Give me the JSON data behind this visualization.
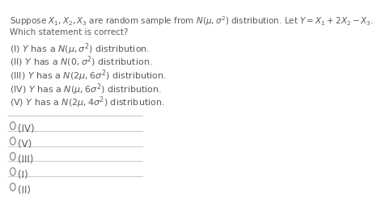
{
  "background_color": "#ffffff",
  "text_color": "#5a5a5a",
  "title_line": "Suppose $X_1, X_2, X_3$ are random sample from $N(\\mu, \\sigma^2)$ distribution. Let $Y = X_1 + 2X_2 - X_3$.",
  "subtitle": "Which statement is correct?",
  "options": [
    "(I) $Y$ has a $N(\\mu, \\sigma^2)$ distribution.",
    "(II) $Y$ has a $N(0, \\sigma^2)$ distribution.",
    "(III) $Y$ has a $N(2\\mu, 6\\sigma^2)$ distribution.",
    "(IV) $Y$ has a $N(\\mu, 6\\sigma^2)$ distribution.",
    "(V) $Y$ has a $N(2\\mu, 4\\sigma^2)$ distribution."
  ],
  "answer_options": [
    "(IV)",
    "(V)",
    "(III)",
    "(I)",
    "(II)"
  ],
  "divider_color": "#cccccc",
  "circle_color": "#888888",
  "font_size_title": 7.5,
  "font_size_options": 8.0,
  "font_size_answers": 8.5
}
